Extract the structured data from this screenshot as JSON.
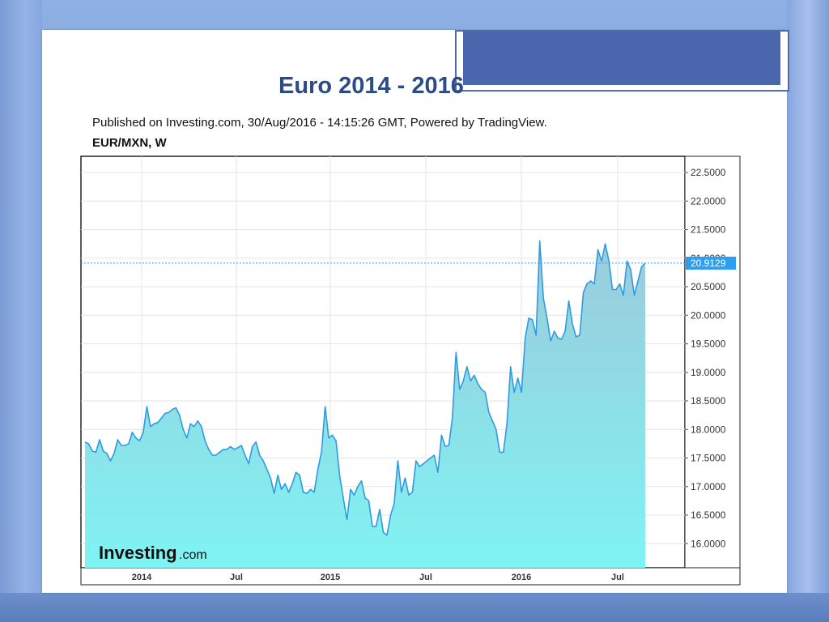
{
  "slide": {
    "title": "Euro 2014 - 2016"
  },
  "header": {
    "published": "Published on Investing.com, 30/Aug/2016 - 14:15:26 GMT, Powered by TradingView.",
    "symbol": "EUR/MXN, W"
  },
  "logo": {
    "brand": "Investing",
    "suffix": ".com"
  },
  "colors": {
    "line": "#2f9be0",
    "fill_top": "#9ccadb",
    "fill_bottom": "#7ff3f3",
    "last_label_bg": "#2e9ef0",
    "title": "#2d4b86"
  },
  "chart_data": {
    "type": "area",
    "title": "EUR/MXN, W",
    "ylim": [
      15.8,
      22.75
    ],
    "y_ticks": [
      "22.5000",
      "22.0000",
      "21.5000",
      "21.0000",
      "20.5000",
      "20.0000",
      "19.5000",
      "19.0000",
      "18.5000",
      "18.0000",
      "17.5000",
      "17.0000",
      "16.5000",
      "16.0000"
    ],
    "x_ticks": [
      "2014",
      "Jul",
      "2015",
      "Jul",
      "2016",
      "Jul"
    ],
    "last_value": "20.9129",
    "grid": true,
    "series": [
      {
        "values": [
          17.78,
          17.75,
          17.62,
          17.6,
          17.82,
          17.62,
          17.58,
          17.45,
          17.58,
          17.82,
          17.72,
          17.72,
          17.75,
          17.95,
          17.85,
          17.8,
          17.95,
          18.4,
          18.05,
          18.1,
          18.12,
          18.2,
          18.28,
          18.3,
          18.35,
          18.38,
          18.25,
          18.0,
          17.85,
          18.1,
          18.05,
          18.15,
          18.05,
          17.8,
          17.65,
          17.55,
          17.55,
          17.6,
          17.65,
          17.65,
          17.7,
          17.65,
          17.68,
          17.72,
          17.55,
          17.4,
          17.7,
          17.78,
          17.55,
          17.45,
          17.3,
          17.15,
          16.88,
          17.2,
          16.95,
          17.05,
          16.9,
          17.05,
          17.25,
          17.2,
          16.9,
          16.88,
          16.95,
          16.9,
          17.3,
          17.6,
          18.4,
          17.85,
          17.9,
          17.8,
          17.2,
          16.8,
          16.42,
          16.95,
          16.85,
          17.0,
          17.1,
          16.8,
          16.75,
          16.3,
          16.3,
          16.6,
          16.2,
          16.15,
          16.5,
          16.7,
          17.45,
          16.9,
          17.15,
          16.85,
          16.9,
          17.45,
          17.35,
          17.4,
          17.45,
          17.5,
          17.55,
          17.25,
          17.9,
          17.7,
          17.72,
          18.2,
          19.35,
          18.7,
          18.85,
          19.1,
          18.85,
          18.95,
          18.8,
          18.7,
          18.65,
          18.3,
          18.15,
          18.0,
          17.6,
          17.6,
          18.1,
          19.1,
          18.65,
          18.9,
          18.65,
          19.6,
          19.95,
          19.92,
          19.65,
          21.3,
          20.3,
          19.95,
          19.55,
          19.72,
          19.6,
          19.58,
          19.72,
          20.25,
          19.85,
          19.62,
          19.65,
          20.4,
          20.55,
          20.6,
          20.55,
          21.15,
          20.95,
          21.25,
          20.95,
          20.45,
          20.45,
          20.55,
          20.35,
          20.95,
          20.8,
          20.35,
          20.6,
          20.85,
          20.91
        ]
      }
    ]
  }
}
